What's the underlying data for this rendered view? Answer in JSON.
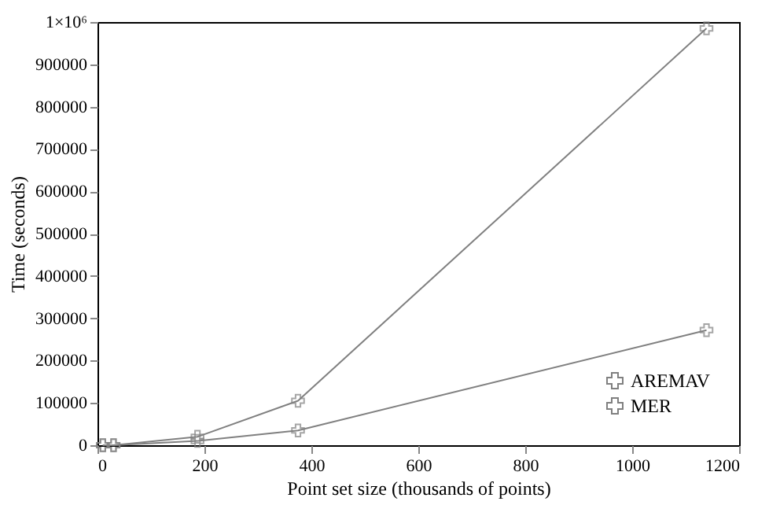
{
  "chart_data": {
    "type": "line",
    "xlabel": "Point set size (thousands of points)",
    "ylabel": "Time (seconds)",
    "xlim": [
      0,
      1200
    ],
    "xticks": [
      0,
      200,
      400,
      600,
      800,
      1000,
      1200
    ],
    "ylim": [
      0,
      1000000
    ],
    "yticks": [
      0,
      100000,
      200000,
      300000,
      400000,
      500000,
      600000,
      700000,
      800000,
      900000,
      {
        "value": 1000000,
        "label": "1×10⁶"
      }
    ],
    "x": [
      10,
      30,
      187,
      375,
      1139
    ],
    "series": [
      {
        "name": "AREMAV",
        "color": "#808080",
        "marker": "cross",
        "values": [
          0,
          0,
          20000,
          105000,
          985000
        ]
      },
      {
        "name": "MER",
        "color": "#808080",
        "marker": "cross",
        "values": [
          0,
          0,
          10000,
          35000,
          272000
        ]
      }
    ],
    "legend": "bottom right",
    "grid": false,
    "line_style": "solid"
  }
}
